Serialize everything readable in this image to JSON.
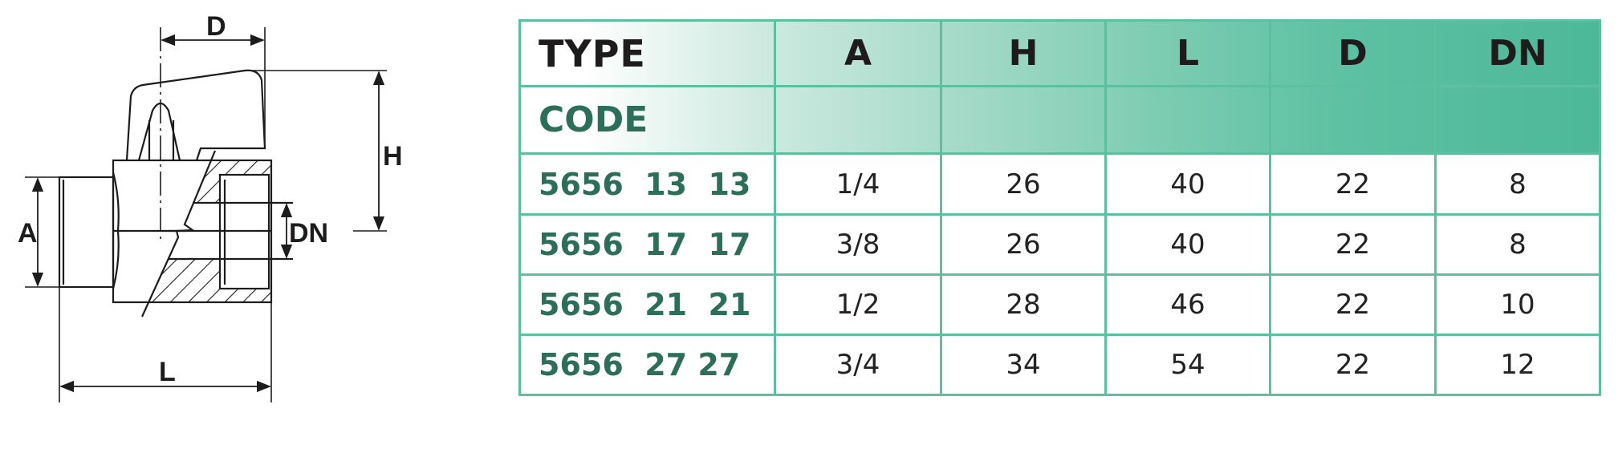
{
  "drawing": {
    "labels": {
      "D": "D",
      "H": "H",
      "A": "A",
      "DN": "DN",
      "L": "L"
    }
  },
  "table": {
    "header": {
      "type": "TYPE",
      "code": "CODE",
      "columns": [
        "A",
        "H",
        "L",
        "D",
        "DN"
      ]
    },
    "rows": [
      {
        "code": "5656  13  13",
        "values": [
          "1/4",
          "26",
          "40",
          "22",
          "8"
        ]
      },
      {
        "code": "5656  17  17",
        "values": [
          "3/8",
          "26",
          "40",
          "22",
          "8"
        ]
      },
      {
        "code": "5656  21  21",
        "values": [
          "1/2",
          "28",
          "46",
          "22",
          "10"
        ]
      },
      {
        "code": "5656  27 27",
        "values": [
          "3/4",
          "34",
          "54",
          "22",
          "12"
        ]
      }
    ]
  },
  "colors": {
    "border": "#5cc0a0",
    "code_text": "#2d6e5a",
    "header_gradient_end": "#4db898"
  }
}
